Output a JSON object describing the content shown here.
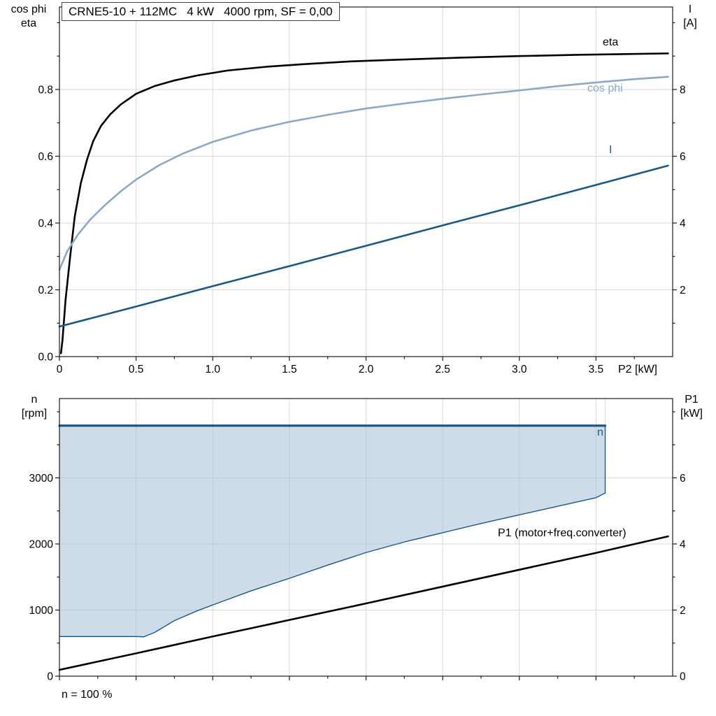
{
  "colors": {
    "frame": "#1a1a1a",
    "grid": "#d9d9d9",
    "text": "#000000",
    "steel_blue": "#8ca8c6",
    "dark_blue": "#1b5684",
    "region_fill": "#9dbad6"
  },
  "chart_data": [
    {
      "id": "motor-curves",
      "type": "line",
      "title": "CRNE5-10 + 112MC   4 kW   4000 rpm, SF = 0,00",
      "x_axis": {
        "label": "P2 [kW]",
        "range": [
          0,
          4.0
        ],
        "major_ticks": [
          0,
          0.5,
          1,
          1.5,
          2,
          2.5,
          3,
          3.5
        ],
        "tick_labels": [
          "0",
          "0.5",
          "1.0",
          "1.5",
          "2.0",
          "2.5",
          "3.0",
          "3.5"
        ],
        "minor_step": 0.25
      },
      "left_axis": {
        "label": [
          "cos phi",
          "eta"
        ],
        "range": [
          0,
          1.047
        ],
        "major_ticks": [
          0,
          0.2,
          0.4,
          0.6,
          0.8
        ],
        "tick_labels": [
          "0.0",
          "0.2",
          "0.4",
          "0.6",
          "0.8"
        ],
        "minor_step": 0.1
      },
      "right_axis": {
        "label": [
          "I",
          "[A]"
        ],
        "range": [
          0,
          10.47
        ],
        "major_ticks": [
          2,
          4,
          6,
          8
        ],
        "tick_labels": [
          "2",
          "4",
          "6",
          "8"
        ],
        "minor_step": 1
      },
      "grid": true,
      "legend": "inline-labels",
      "series": [
        {
          "name": "eta",
          "axis": "left",
          "color": "#000000",
          "width": 2.6,
          "x": [
            0.01,
            0.02,
            0.04,
            0.07,
            0.1,
            0.14,
            0.18,
            0.22,
            0.27,
            0.33,
            0.4,
            0.5,
            0.62,
            0.75,
            0.9,
            1.1,
            1.35,
            1.6,
            1.9,
            2.2,
            2.6,
            3.0,
            3.4,
            3.7,
            3.97
          ],
          "y": [
            0.01,
            0.05,
            0.17,
            0.3,
            0.42,
            0.52,
            0.59,
            0.645,
            0.69,
            0.725,
            0.755,
            0.787,
            0.81,
            0.827,
            0.842,
            0.857,
            0.868,
            0.876,
            0.884,
            0.889,
            0.895,
            0.9,
            0.904,
            0.906,
            0.908
          ]
        },
        {
          "name": "cos phi",
          "axis": "left",
          "color": "#8ca8c6",
          "width": 2.6,
          "x": [
            0,
            0.05,
            0.12,
            0.2,
            0.3,
            0.4,
            0.5,
            0.65,
            0.8,
            1.0,
            1.25,
            1.5,
            1.75,
            2.0,
            2.25,
            2.5,
            2.75,
            3.0,
            3.25,
            3.5,
            3.75,
            3.97
          ],
          "y": [
            0.26,
            0.315,
            0.365,
            0.41,
            0.455,
            0.495,
            0.53,
            0.573,
            0.607,
            0.643,
            0.677,
            0.703,
            0.724,
            0.743,
            0.758,
            0.772,
            0.785,
            0.797,
            0.81,
            0.821,
            0.831,
            0.838
          ]
        },
        {
          "name": "I",
          "axis": "right",
          "color": "#1b5684",
          "width": 2.6,
          "x": [
            0,
            0.5,
            1.0,
            1.5,
            2.0,
            2.5,
            3.0,
            3.5,
            3.97
          ],
          "y": [
            0.9,
            1.5,
            2.11,
            2.71,
            3.32,
            3.93,
            4.53,
            5.14,
            5.72
          ]
        }
      ]
    },
    {
      "id": "speed-and-power",
      "type": "area-line",
      "title": "",
      "x_axis": {
        "label": "",
        "range": [
          0,
          4.0
        ],
        "major_ticks": [
          0,
          0.5,
          1,
          1.5,
          2,
          2.5,
          3,
          3.5
        ],
        "tick_labels": [],
        "minor_step": 0.25
      },
      "left_axis": {
        "label": [
          "n",
          "[rpm]"
        ],
        "range": [
          0,
          4200
        ],
        "major_ticks": [
          0,
          1000,
          2000,
          3000
        ],
        "tick_labels": [
          "0",
          "1000",
          "2000",
          "3000"
        ],
        "minor_step": 500
      },
      "right_axis": {
        "label": [
          "P1",
          "[kW]"
        ],
        "range": [
          0,
          8.4
        ],
        "major_ticks": [
          0,
          2,
          4,
          6
        ],
        "tick_labels": [
          "0",
          "2",
          "4",
          "6"
        ],
        "minor_step": 1
      },
      "grid": true,
      "footnote": "n = 100 %",
      "region": {
        "name": "speed-duty-range",
        "fill": "#9dbad6",
        "fill_opacity": 0.5,
        "border_color": "#1b5684",
        "border_width": 1.4,
        "top_value": 3790,
        "lower_x": [
          0,
          0.5,
          0.55,
          0.62,
          0.75,
          0.9,
          1.05,
          1.25,
          1.5,
          1.75,
          2.0,
          2.25,
          2.5,
          2.75,
          3.0,
          3.25,
          3.5,
          3.56
        ],
        "lower_y": [
          600,
          600,
          595,
          660,
          840,
          990,
          1120,
          1290,
          1480,
          1680,
          1870,
          2030,
          2170,
          2310,
          2440,
          2570,
          2700,
          2770
        ]
      },
      "series": [
        {
          "name": "n",
          "axis": "left",
          "color": "#1b5684",
          "width": 3.2,
          "x": [
            0,
            3.56
          ],
          "y": [
            3790,
            3790
          ]
        },
        {
          "name": "P1 (motor+freq.converter)",
          "axis": "right",
          "color": "#000000",
          "width": 2.6,
          "x": [
            0,
            0.5,
            1.0,
            1.5,
            2.0,
            2.5,
            3.0,
            3.5,
            3.97
          ],
          "y": [
            0.19,
            0.69,
            1.2,
            1.7,
            2.2,
            2.71,
            3.22,
            3.73,
            4.23
          ]
        }
      ]
    }
  ]
}
